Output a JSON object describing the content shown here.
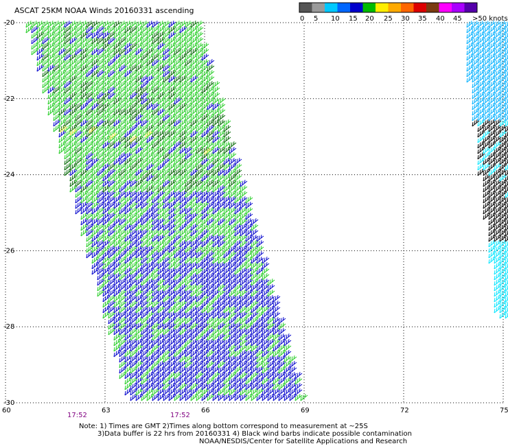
{
  "title": "ASCAT 25KM NOAA Winds 20160331 ascending",
  "colorbar": {
    "colors": [
      "#555555",
      "#9a9a9a",
      "#00c8ff",
      "#0066ff",
      "#0000cc",
      "#00bb00",
      "#ffee00",
      "#ffaa00",
      "#ff6600",
      "#dd0000",
      "#7a3b10",
      "#ff00ff",
      "#aa00ff",
      "#5500aa"
    ],
    "labels": [
      "0",
      "5",
      "10",
      "15",
      "20",
      "25",
      "30",
      "35",
      "40",
      "45",
      ">50 knots"
    ]
  },
  "axes": {
    "lat_ticks": [
      "-20",
      "-22",
      "-24",
      "-26",
      "-28",
      "-30"
    ],
    "lon_ticks": [
      "60",
      "63",
      "66",
      "69",
      "72",
      "75"
    ],
    "lat_range": [
      -20,
      -30
    ],
    "lon_range": [
      60,
      75
    ],
    "grid": "dotted"
  },
  "times": [
    "17:52",
    "17:52"
  ],
  "barb_colors": {
    "blue": "#0000cc",
    "green": "#22cc22",
    "dark_green": "#006600",
    "light_blue": "#00b0ff",
    "cyan": "#00e5ff",
    "black": "#000000",
    "yellow": "#ffee66"
  },
  "notes": {
    "line1": "Note: 1) Times are GMT 2)Times along bottom correspond to measurement at ~25S",
    "line2": "3)Data buffer is 22 hrs from 20160331 4) Black wind barbs indicate possible contamination",
    "line3": "NOAA/NESDIS/Center for Satellite Applications and Research"
  }
}
